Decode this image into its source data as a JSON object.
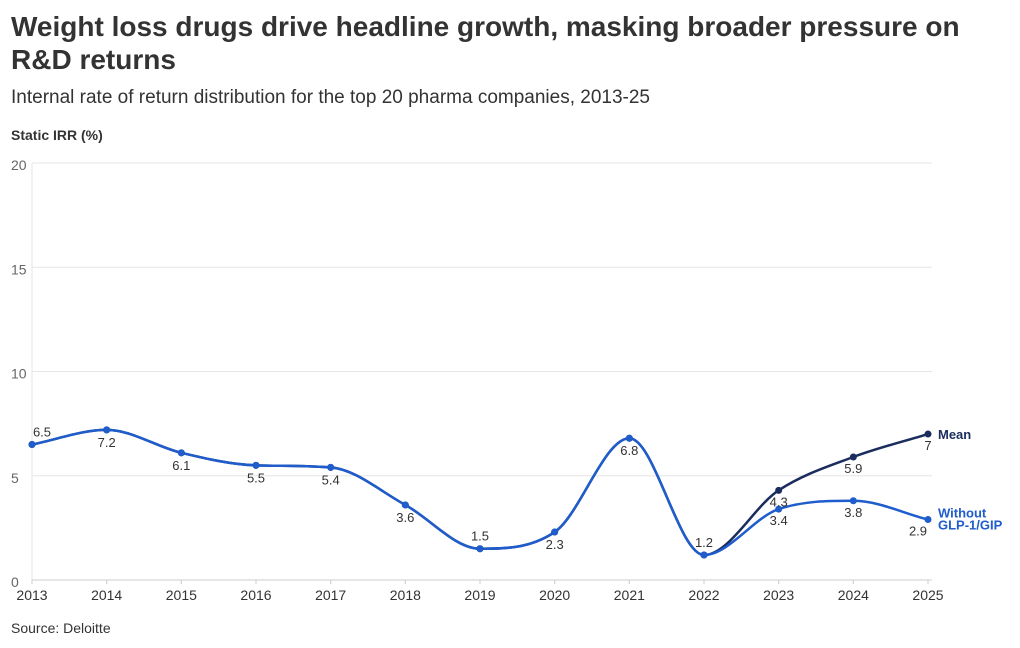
{
  "title": "Weight loss drugs drive headline growth, masking broader pressure on R&D returns",
  "subtitle": "Internal rate of return distribution for the top 20 pharma companies, 2013-25",
  "source": "Source: Deloitte",
  "chart_data": {
    "type": "line",
    "ylabel": "Static IRR (%)",
    "xlabel": "",
    "x": [
      2013,
      2014,
      2015,
      2016,
      2017,
      2018,
      2019,
      2020,
      2021,
      2022,
      2023,
      2024,
      2025
    ],
    "ylim": [
      0,
      20
    ],
    "yticks": [
      0,
      5,
      10,
      15,
      20
    ],
    "grid": true,
    "legend": "inline labels at line ends",
    "series": [
      {
        "name": "Mean",
        "color": "#1b2d5e",
        "values": [
          6.5,
          7.2,
          6.1,
          5.5,
          5.4,
          3.6,
          1.5,
          2.3,
          6.8,
          1.2,
          4.3,
          5.9,
          7
        ]
      },
      {
        "name": "Without GLP-1/GIP",
        "color": "#1f5ccc",
        "values": [
          6.5,
          7.2,
          6.1,
          5.5,
          5.4,
          3.6,
          1.5,
          2.3,
          6.8,
          1.2,
          3.4,
          3.8,
          2.9
        ]
      }
    ]
  }
}
